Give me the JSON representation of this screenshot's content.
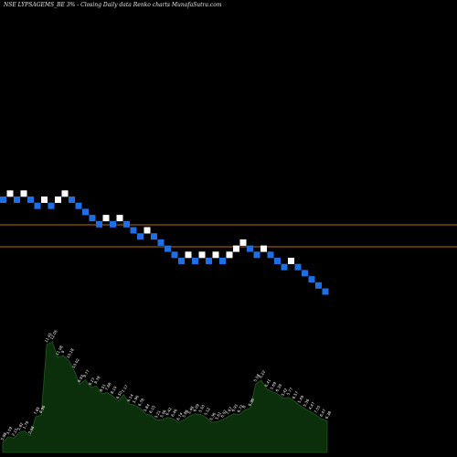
{
  "chart_data": {
    "title": "NSE LYPSAGEMS_BE 3% -  Closing Daily data  Renko  charts MunafaSutra.com",
    "panels": [
      {
        "type": "renko",
        "up_color": "#ffffff",
        "down_color": "#1e6fe6",
        "horizontal_lines": {
          "count": 2,
          "color": "#b86a1a"
        },
        "bricks": [
          {
            "level": 0,
            "dir": "down"
          },
          {
            "level": 1,
            "dir": "up"
          },
          {
            "level": 0,
            "dir": "down"
          },
          {
            "level": 1,
            "dir": "up"
          },
          {
            "level": 0,
            "dir": "down"
          },
          {
            "level": -1,
            "dir": "down"
          },
          {
            "level": 0,
            "dir": "up"
          },
          {
            "level": -1,
            "dir": "down"
          },
          {
            "level": 0,
            "dir": "up"
          },
          {
            "level": 1,
            "dir": "up"
          },
          {
            "level": 0,
            "dir": "down"
          },
          {
            "level": -1,
            "dir": "down"
          },
          {
            "level": -2,
            "dir": "down"
          },
          {
            "level": -3,
            "dir": "down"
          },
          {
            "level": -4,
            "dir": "down"
          },
          {
            "level": -3,
            "dir": "up"
          },
          {
            "level": -4,
            "dir": "down"
          },
          {
            "level": -3,
            "dir": "up"
          },
          {
            "level": -4,
            "dir": "down"
          },
          {
            "level": -5,
            "dir": "down"
          },
          {
            "level": -6,
            "dir": "down"
          },
          {
            "level": -5,
            "dir": "up"
          },
          {
            "level": -6,
            "dir": "down"
          },
          {
            "level": -7,
            "dir": "down"
          },
          {
            "level": -8,
            "dir": "down"
          },
          {
            "level": -9,
            "dir": "down"
          },
          {
            "level": -10,
            "dir": "down"
          },
          {
            "level": -9,
            "dir": "up"
          },
          {
            "level": -10,
            "dir": "down"
          },
          {
            "level": -9,
            "dir": "up"
          },
          {
            "level": -10,
            "dir": "down"
          },
          {
            "level": -9,
            "dir": "up"
          },
          {
            "level": -10,
            "dir": "down"
          },
          {
            "level": -9,
            "dir": "up"
          },
          {
            "level": -8,
            "dir": "up"
          },
          {
            "level": -7,
            "dir": "up"
          },
          {
            "level": -8,
            "dir": "down"
          },
          {
            "level": -9,
            "dir": "down"
          },
          {
            "level": -8,
            "dir": "up"
          },
          {
            "level": -9,
            "dir": "down"
          },
          {
            "level": -10,
            "dir": "down"
          },
          {
            "level": -11,
            "dir": "down"
          },
          {
            "level": -10,
            "dir": "up"
          },
          {
            "level": -11,
            "dir": "down"
          },
          {
            "level": -12,
            "dir": "down"
          },
          {
            "level": -13,
            "dir": "down"
          },
          {
            "level": -14,
            "dir": "down"
          },
          {
            "level": -15,
            "dir": "down"
          }
        ]
      },
      {
        "type": "area",
        "fill_color": "#0b2e0b",
        "stroke_color": "#1f5c1f",
        "values": [
          1.4,
          2.2,
          2.0,
          2.8,
          3.0,
          2.3,
          5.0,
          5.2,
          15.1,
          15.5,
          13.3,
          13.6,
          12.9,
          11.5,
          9.5,
          10.2,
          9.1,
          9.3,
          8.2,
          8.4,
          7.9,
          7.2,
          8.1,
          6.8,
          6.6,
          6.2,
          5.4,
          5.2,
          4.5,
          4.6,
          4.9,
          4.7,
          4.2,
          4.6,
          5.1,
          5.4,
          5.3,
          4.9,
          4.2,
          4.3,
          4.6,
          5.0,
          5.4,
          5.3,
          5.9,
          6.2,
          9.6,
          10.1,
          8.9,
          8.5,
          8.2,
          7.6,
          7.7,
          7.2,
          6.6,
          6.1,
          5.7,
          5.2,
          4.7,
          4.4
        ],
        "value_labels": [
          "5.88",
          "3.59",
          "2.15",
          "5.82",
          "1.79",
          "0.98",
          "7.85",
          "6.96",
          "11.45",
          "12.05",
          "11.08",
          "9",
          "10.18",
          "10.02",
          "8.93",
          "9.77",
          "8.27",
          "9.78",
          "8.51",
          "7.68",
          "8.10",
          "6.50",
          "7.17",
          "6.14",
          "5.96",
          "6.78",
          "5.84",
          "6.15",
          "5.21",
          "5.06",
          "6.42",
          "6.46",
          "6.74",
          "5.86",
          "5.48",
          "6.09",
          "5.50",
          "5.12",
          "5.36",
          "5.61",
          "6.02",
          "7.67",
          "6.91",
          "6.72",
          "8",
          "6.96",
          "5.58",
          "6.22",
          "6.41",
          "5.69",
          "6.39",
          "5.42",
          "5.77",
          "6.57",
          "5.49",
          "5.36",
          "4.47",
          "7.55",
          "6.47",
          "6.38"
        ]
      }
    ]
  }
}
